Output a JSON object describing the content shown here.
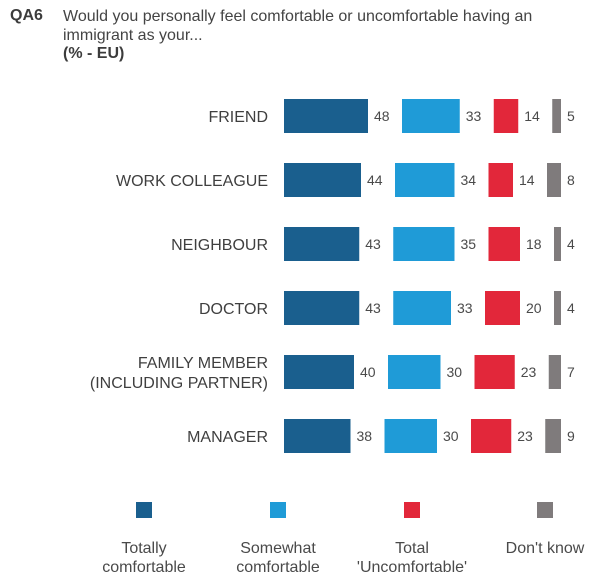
{
  "header": {
    "code": "QA6",
    "question": "Would you personally feel comfortable or uncomfortable having an immigrant as your...",
    "subtitle": "(% - EU)"
  },
  "chart_data": {
    "type": "bar",
    "categories": [
      [
        "FRIEND"
      ],
      [
        "WORK COLLEAGUE"
      ],
      [
        "NEIGHBOUR"
      ],
      [
        "DOCTOR"
      ],
      [
        "FAMILY MEMBER",
        "(INCLUDING PARTNER)"
      ],
      [
        "MANAGER"
      ]
    ],
    "series": [
      {
        "name": "Totally comfortable",
        "color": "#1a5f8e",
        "values": [
          48,
          44,
          43,
          43,
          40,
          38
        ]
      },
      {
        "name": "Somewhat comfortable",
        "color": "#1f9bd7",
        "values": [
          33,
          34,
          35,
          33,
          30,
          30
        ]
      },
      {
        "name": "Total 'Uncomfortable'",
        "color": "#e2273a",
        "values": [
          14,
          14,
          18,
          20,
          23,
          23
        ]
      },
      {
        "name": "Don't know",
        "color": "#7f7b7c",
        "values": [
          5,
          8,
          4,
          4,
          7,
          9
        ]
      }
    ],
    "legend_position": "bottom",
    "grid": false
  },
  "legend": [
    {
      "label": "Totally\ncomfortable",
      "color": "#1a5f8e"
    },
    {
      "label": "Somewhat\ncomfortable",
      "color": "#1f9bd7"
    },
    {
      "label": "Total\n'Uncomfortable'",
      "color": "#e2273a"
    },
    {
      "label": "Don't know",
      "color": "#7f7b7c"
    }
  ]
}
